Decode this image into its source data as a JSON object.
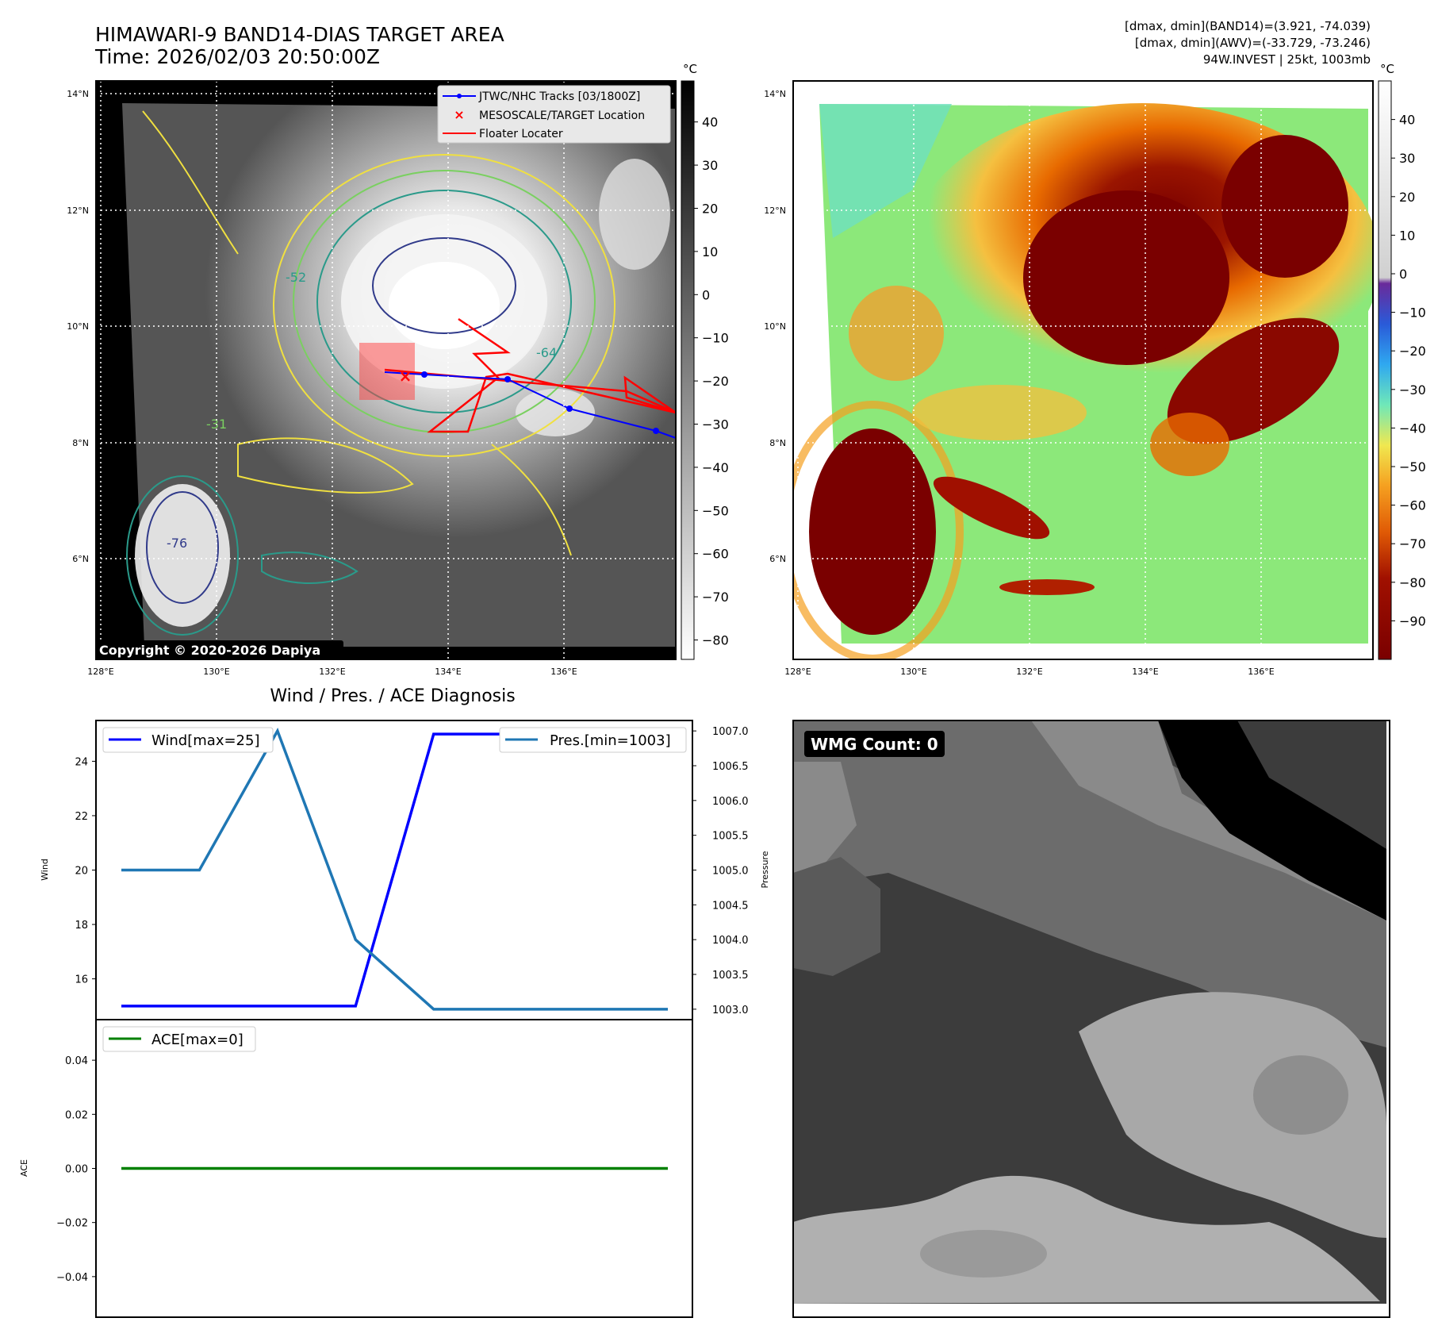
{
  "header": {
    "title": "HIMAWARI-9 BAND14-DIAS TARGET AREA",
    "time": "Time: 2026/02/03 20:50:00Z",
    "dmax_band14": "[dmax, dmin](BAND14)=(3.921, -74.039)",
    "dmax_awv": "[dmax, dmin](AWV)=(-33.729, -73.246)",
    "storm_info": "94W.INVEST | 25kt, 1003mb"
  },
  "ir_map": {
    "lat_labels": [
      "14°N",
      "12°N",
      "10°N",
      "8°N",
      "6°N"
    ],
    "lon_labels": [
      "128°E",
      "130°E",
      "132°E",
      "134°E",
      "136°E"
    ],
    "colorbar_unit": "°C",
    "colorbar_ticks": [
      "40",
      "30",
      "20",
      "10",
      "0",
      "−10",
      "−20",
      "−30",
      "−40",
      "−50",
      "−60",
      "−70",
      "−80"
    ],
    "legend": {
      "tracks": "JTWC/NHC Tracks [03/1800Z]",
      "target": "MESOSCALE/TARGET Location",
      "floater": "Floater Locater"
    },
    "copyright": "Copyright © 2020-2026 Dapiya",
    "contour_labels": [
      "-31",
      "-52",
      "-64",
      "-76"
    ],
    "colors": {
      "track": "#0000ff",
      "target": "#ff0000",
      "floater": "#ff0000"
    }
  },
  "awv_map": {
    "lat_labels": [
      "14°N",
      "12°N",
      "10°N",
      "8°N",
      "6°N"
    ],
    "lon_labels": [
      "128°E",
      "130°E",
      "132°E",
      "134°E",
      "136°E"
    ],
    "colorbar_unit": "°C",
    "colorbar_ticks": [
      "40",
      "30",
      "20",
      "10",
      "0",
      "−10",
      "−20",
      "−30",
      "−40",
      "−50",
      "−60",
      "−70",
      "−80",
      "−90"
    ]
  },
  "wmg": {
    "label": "WMG Count: 0"
  },
  "chart_data": [
    {
      "type": "line",
      "title": "Wind / Pres. / ACE Diagnosis",
      "x": [
        0,
        1,
        2,
        3,
        4,
        5,
        6,
        7
      ],
      "series": [
        {
          "name": "Wind[max=25]",
          "axis": "left",
          "values": [
            15,
            15,
            15,
            15,
            25,
            25,
            25,
            25
          ],
          "color": "#0000ff"
        },
        {
          "name": "Pres.[min=1003]",
          "axis": "right",
          "values": [
            1005,
            1005,
            1007,
            1004,
            1003,
            1003,
            1003,
            1003
          ],
          "color": "#1f77b4"
        }
      ],
      "ylabel": "Wind",
      "ylabel_right": "Pressure",
      "ylim": [
        14.5,
        25.5
      ],
      "ylim_right": [
        1002.85,
        1007.15
      ],
      "yticks": [
        "16",
        "18",
        "20",
        "22",
        "24"
      ],
      "yticks_right": [
        "1003.0",
        "1003.5",
        "1004.0",
        "1004.5",
        "1005.0",
        "1005.5",
        "1006.0",
        "1006.5",
        "1007.0"
      ],
      "legend": "top"
    },
    {
      "type": "line",
      "x": [
        0,
        1,
        2,
        3,
        4,
        5,
        6,
        7
      ],
      "series": [
        {
          "name": "ACE[max=0]",
          "values": [
            0,
            0,
            0,
            0,
            0,
            0,
            0,
            0
          ],
          "color": "#008000"
        }
      ],
      "ylabel": "ACE",
      "ylim": [
        -0.055,
        0.055
      ],
      "yticks": [
        "0.04",
        "0.02",
        "0.00",
        "−0.02",
        "−0.04"
      ],
      "legend": "top-left"
    }
  ]
}
